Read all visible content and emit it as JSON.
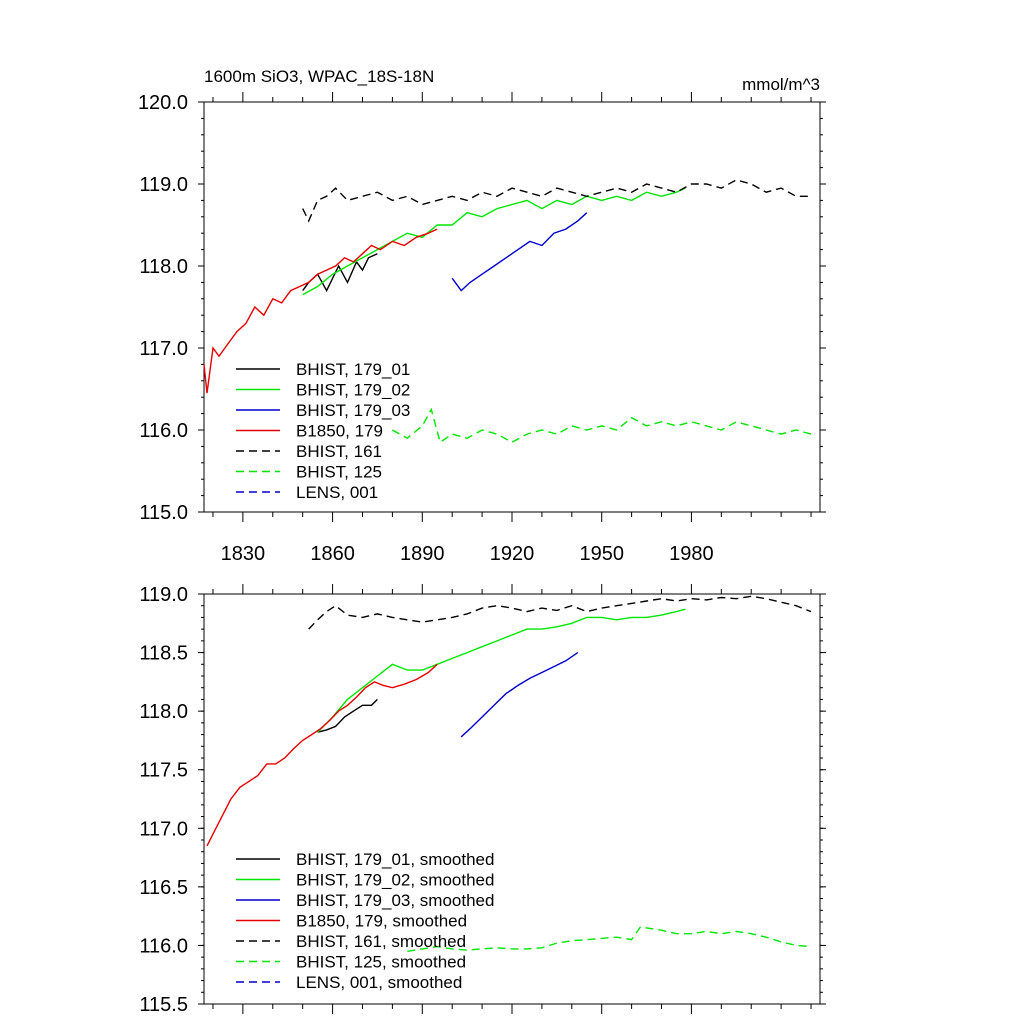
{
  "header": {
    "title": "1600m SiO3, WPAC_18S-18N",
    "units": "mmol/m^3"
  },
  "colors": {
    "black": "#000000",
    "green": "#00e600",
    "blue": "#0000cc",
    "red": "#e60000"
  },
  "chart_data": [
    {
      "type": "line",
      "xlim": [
        1817,
        2023
      ],
      "ylim": [
        115.0,
        120.0
      ],
      "x_ticks": [
        1830,
        1860,
        1890,
        1920,
        1950,
        1980
      ],
      "x_tick_labels": [
        "1830",
        "1860",
        "1890",
        "1920",
        "1950",
        "1980"
      ],
      "y_ticks": [
        115,
        116,
        117,
        118,
        119,
        120
      ],
      "y_tick_labels": [
        "115.0",
        "116.0",
        "117.0",
        "118.0",
        "119.0",
        "120.0"
      ],
      "legend_position": "bottom-left",
      "series": [
        {
          "name": "BHIST, 179_01",
          "color": "#000000",
          "dash": "solid",
          "x": [
            1850,
            1852,
            1855,
            1858,
            1860,
            1862,
            1865,
            1868,
            1870,
            1872,
            1875
          ],
          "y": [
            117.7,
            117.8,
            117.9,
            117.7,
            117.85,
            118.0,
            117.8,
            118.05,
            117.95,
            118.1,
            118.15
          ]
        },
        {
          "name": "BHIST, 179_02",
          "color": "#00e600",
          "dash": "solid",
          "x": [
            1850,
            1855,
            1860,
            1865,
            1870,
            1875,
            1880,
            1885,
            1890,
            1895,
            1900,
            1905,
            1910,
            1915,
            1920,
            1925,
            1930,
            1935,
            1940,
            1945,
            1950,
            1955,
            1960,
            1965,
            1970,
            1975,
            1978
          ],
          "y": [
            117.65,
            117.75,
            117.9,
            118.0,
            118.1,
            118.2,
            118.3,
            118.4,
            118.35,
            118.5,
            118.5,
            118.65,
            118.6,
            118.7,
            118.75,
            118.8,
            118.7,
            118.8,
            118.75,
            118.85,
            118.8,
            118.85,
            118.8,
            118.9,
            118.85,
            118.9,
            118.95
          ]
        },
        {
          "name": "BHIST, 179_03",
          "color": "#0000cc",
          "dash": "solid",
          "x": [
            1900,
            1903,
            1906,
            1910,
            1914,
            1918,
            1922,
            1926,
            1930,
            1934,
            1938,
            1942,
            1945
          ],
          "y": [
            117.85,
            117.7,
            117.8,
            117.9,
            118.0,
            118.1,
            118.2,
            118.3,
            118.25,
            118.4,
            118.45,
            118.55,
            118.65
          ]
        },
        {
          "name": "B1850, 179",
          "color": "#e60000",
          "dash": "solid",
          "x": [
            1817,
            1818,
            1820,
            1822,
            1825,
            1828,
            1831,
            1834,
            1837,
            1840,
            1843,
            1846,
            1849,
            1852,
            1855,
            1858,
            1861,
            1864,
            1867,
            1870,
            1873,
            1876,
            1880,
            1884,
            1888,
            1892,
            1895
          ],
          "y": [
            116.8,
            116.45,
            117.0,
            116.9,
            117.05,
            117.2,
            117.3,
            117.5,
            117.4,
            117.6,
            117.55,
            117.7,
            117.75,
            117.8,
            117.9,
            117.95,
            118.0,
            118.1,
            118.05,
            118.15,
            118.25,
            118.2,
            118.3,
            118.25,
            118.35,
            118.4,
            118.45
          ]
        },
        {
          "name": "BHIST, 161",
          "color": "#000000",
          "dash": "dashed",
          "x": [
            1850,
            1852,
            1855,
            1858,
            1861,
            1865,
            1870,
            1875,
            1880,
            1885,
            1890,
            1895,
            1900,
            1905,
            1910,
            1915,
            1920,
            1925,
            1930,
            1935,
            1940,
            1945,
            1950,
            1955,
            1960,
            1965,
            1970,
            1975,
            1980,
            1985,
            1990,
            1995,
            2000,
            2005,
            2010,
            2015,
            2020
          ],
          "y": [
            118.7,
            118.55,
            118.8,
            118.85,
            118.95,
            118.8,
            118.85,
            118.9,
            118.8,
            118.85,
            118.75,
            118.8,
            118.85,
            118.8,
            118.9,
            118.85,
            118.95,
            118.9,
            118.85,
            118.95,
            118.9,
            118.85,
            118.9,
            118.95,
            118.9,
            119.0,
            118.95,
            118.9,
            119.0,
            119.0,
            118.95,
            119.05,
            119.0,
            118.9,
            118.95,
            118.85,
            118.85
          ]
        },
        {
          "name": "BHIST, 125",
          "color": "#00e600",
          "dash": "dashed",
          "x": [
            1880,
            1885,
            1890,
            1893,
            1896,
            1900,
            1905,
            1910,
            1915,
            1920,
            1925,
            1930,
            1935,
            1940,
            1945,
            1950,
            1955,
            1960,
            1965,
            1970,
            1975,
            1980,
            1985,
            1990,
            1995,
            2000,
            2005,
            2010,
            2015,
            2020
          ],
          "y": [
            116.0,
            115.9,
            116.05,
            116.25,
            115.85,
            115.95,
            115.9,
            116.0,
            115.95,
            115.85,
            115.95,
            116.0,
            115.95,
            116.05,
            116.0,
            116.05,
            116.0,
            116.15,
            116.05,
            116.1,
            116.05,
            116.1,
            116.05,
            116.0,
            116.1,
            116.05,
            116.0,
            115.95,
            116.0,
            115.95
          ]
        },
        {
          "name": "LENS, 001",
          "color": "#0000cc",
          "dash": "dashed",
          "x": [],
          "y": []
        }
      ]
    },
    {
      "type": "line",
      "xlim": [
        1817,
        2023
      ],
      "ylim": [
        115.5,
        119.0
      ],
      "x_ticks": [
        1830,
        1860,
        1890,
        1920,
        1950,
        1980
      ],
      "y_ticks": [
        115.5,
        116.0,
        116.5,
        117.0,
        117.5,
        118.0,
        118.5,
        119.0
      ],
      "y_tick_labels": [
        "115.5",
        "116.0",
        "116.5",
        "117.0",
        "117.5",
        "118.0",
        "118.5",
        "119.0"
      ],
      "legend_position": "bottom-left",
      "series": [
        {
          "name": "BHIST, 179_01, smoothed",
          "color": "#000000",
          "dash": "solid",
          "x": [
            1855,
            1858,
            1861,
            1864,
            1867,
            1870,
            1873,
            1875
          ],
          "y": [
            117.82,
            117.84,
            117.87,
            117.95,
            118.0,
            118.05,
            118.05,
            118.1
          ]
        },
        {
          "name": "BHIST, 179_02, smoothed",
          "color": "#00e600",
          "dash": "solid",
          "x": [
            1855,
            1860,
            1865,
            1870,
            1875,
            1880,
            1885,
            1890,
            1895,
            1900,
            1905,
            1910,
            1915,
            1920,
            1925,
            1930,
            1935,
            1940,
            1945,
            1950,
            1955,
            1960,
            1965,
            1970,
            1975,
            1978
          ],
          "y": [
            117.82,
            117.95,
            118.1,
            118.2,
            118.3,
            118.4,
            118.35,
            118.35,
            118.4,
            118.45,
            118.5,
            118.55,
            118.6,
            118.65,
            118.7,
            118.7,
            118.72,
            118.75,
            118.8,
            118.8,
            118.78,
            118.8,
            118.8,
            118.82,
            118.85,
            118.87
          ]
        },
        {
          "name": "BHIST, 179_03, smoothed",
          "color": "#0000cc",
          "dash": "solid",
          "x": [
            1903,
            1906,
            1910,
            1914,
            1918,
            1922,
            1926,
            1930,
            1934,
            1938,
            1942
          ],
          "y": [
            117.78,
            117.85,
            117.95,
            118.05,
            118.15,
            118.22,
            118.28,
            118.33,
            118.38,
            118.43,
            118.5
          ]
        },
        {
          "name": "B1850, 179, smoothed",
          "color": "#e60000",
          "dash": "solid",
          "x": [
            1818,
            1820,
            1823,
            1826,
            1829,
            1832,
            1835,
            1838,
            1841,
            1844,
            1847,
            1850,
            1853,
            1856,
            1859,
            1862,
            1865,
            1868,
            1871,
            1874,
            1877,
            1880,
            1884,
            1888,
            1892,
            1895
          ],
          "y": [
            116.85,
            116.95,
            117.1,
            117.25,
            117.35,
            117.4,
            117.45,
            117.55,
            117.55,
            117.6,
            117.68,
            117.75,
            117.8,
            117.85,
            117.92,
            118.0,
            118.05,
            118.12,
            118.2,
            118.25,
            118.22,
            118.2,
            118.23,
            118.27,
            118.33,
            118.4
          ]
        },
        {
          "name": "BHIST, 161, smoothed",
          "color": "#000000",
          "dash": "dashed",
          "x": [
            1852,
            1855,
            1858,
            1861,
            1865,
            1870,
            1875,
            1880,
            1885,
            1890,
            1895,
            1900,
            1905,
            1910,
            1915,
            1920,
            1925,
            1930,
            1935,
            1940,
            1945,
            1950,
            1955,
            1960,
            1965,
            1970,
            1975,
            1980,
            1985,
            1990,
            1995,
            2000,
            2005,
            2010,
            2015,
            2020
          ],
          "y": [
            118.7,
            118.78,
            118.85,
            118.9,
            118.82,
            118.8,
            118.83,
            118.8,
            118.78,
            118.76,
            118.78,
            118.8,
            118.83,
            118.88,
            118.9,
            118.88,
            118.85,
            118.88,
            118.86,
            118.9,
            118.85,
            118.88,
            118.9,
            118.92,
            118.94,
            118.96,
            118.94,
            118.96,
            118.95,
            118.97,
            118.96,
            118.98,
            118.96,
            118.93,
            118.9,
            118.85
          ]
        },
        {
          "name": "BHIST, 125, smoothed",
          "color": "#00e600",
          "dash": "dashed",
          "x": [
            1885,
            1890,
            1895,
            1900,
            1905,
            1910,
            1915,
            1920,
            1925,
            1930,
            1935,
            1940,
            1945,
            1950,
            1955,
            1960,
            1963,
            1965,
            1970,
            1975,
            1980,
            1985,
            1990,
            1995,
            2000,
            2005,
            2010,
            2015,
            2020
          ],
          "y": [
            115.95,
            115.97,
            115.99,
            115.97,
            115.96,
            115.97,
            115.98,
            115.97,
            115.97,
            115.98,
            116.02,
            116.04,
            116.05,
            116.06,
            116.07,
            116.05,
            116.16,
            116.15,
            116.13,
            116.1,
            116.1,
            116.12,
            116.1,
            116.12,
            116.1,
            116.07,
            116.03,
            116.0,
            115.99
          ]
        },
        {
          "name": "LENS, 001, smoothed",
          "color": "#0000cc",
          "dash": "dashed",
          "x": [],
          "y": []
        }
      ]
    }
  ]
}
